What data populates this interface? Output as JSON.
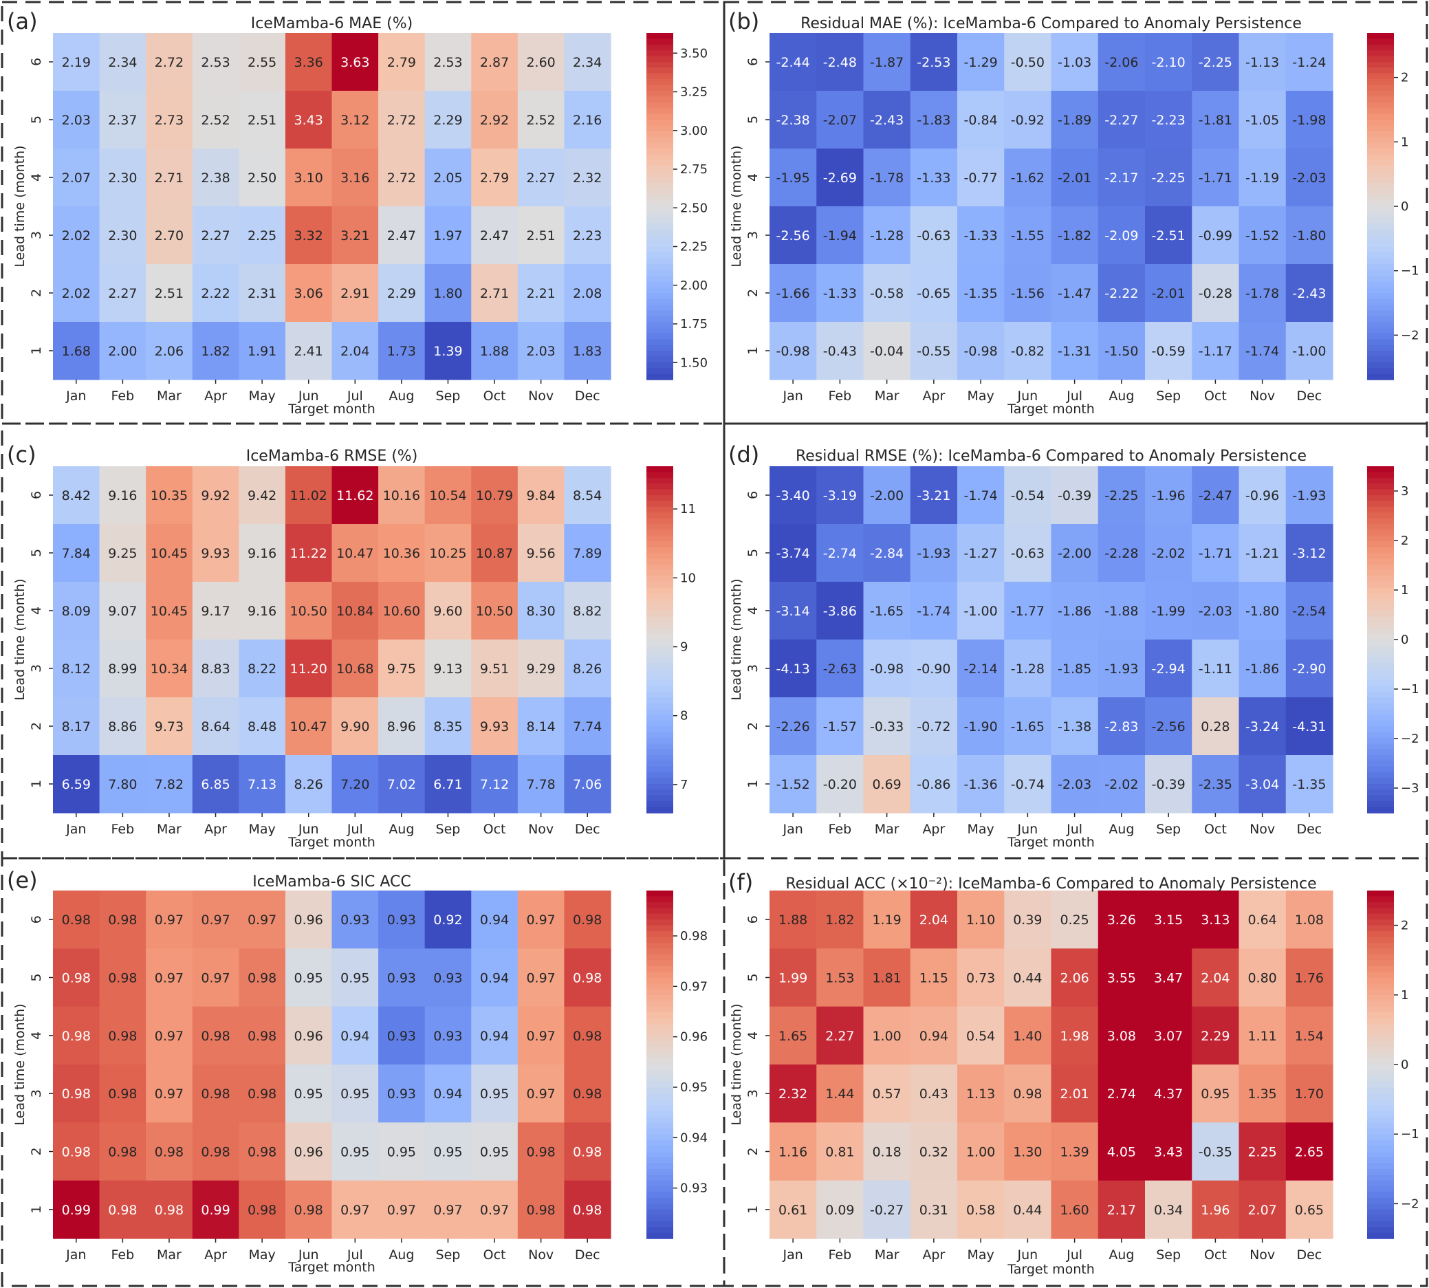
{
  "months": [
    "Jan",
    "Feb",
    "Mar",
    "Apr",
    "May",
    "Jun",
    "Jul",
    "Aug",
    "Sep",
    "Oct",
    "Nov",
    "Dec"
  ],
  "leads": [
    "1",
    "2",
    "3",
    "4",
    "5",
    "6"
  ],
  "xlabel": "Target month",
  "ylabel": "Lead time (month)",
  "chart_data": [
    {
      "type": "heatmap",
      "letter": "(a)",
      "title": "IceMamba-6 MAE (%)",
      "cmap": "coolwarm",
      "vmin": 1.39,
      "vmax": 3.63,
      "colorbar_ticks": [
        "1.50",
        "1.75",
        "2.00",
        "2.25",
        "2.50",
        "2.75",
        "3.00",
        "3.25",
        "3.50"
      ],
      "values": [
        [
          "2.19",
          "2.34",
          "2.72",
          "2.53",
          "2.55",
          "3.36",
          "3.63",
          "2.79",
          "2.53",
          "2.87",
          "2.60",
          "2.34"
        ],
        [
          "2.03",
          "2.37",
          "2.73",
          "2.52",
          "2.51",
          "3.43",
          "3.12",
          "2.72",
          "2.29",
          "2.92",
          "2.52",
          "2.16"
        ],
        [
          "2.07",
          "2.30",
          "2.71",
          "2.38",
          "2.50",
          "3.10",
          "3.16",
          "2.72",
          "2.05",
          "2.79",
          "2.27",
          "2.32"
        ],
        [
          "2.02",
          "2.30",
          "2.70",
          "2.27",
          "2.25",
          "3.32",
          "3.21",
          "2.47",
          "1.97",
          "2.47",
          "2.51",
          "2.23"
        ],
        [
          "2.02",
          "2.27",
          "2.51",
          "2.22",
          "2.31",
          "3.06",
          "2.91",
          "2.29",
          "1.80",
          "2.71",
          "2.21",
          "2.08"
        ],
        [
          "1.68",
          "2.00",
          "2.06",
          "1.82",
          "1.91",
          "2.41",
          "2.04",
          "1.73",
          "1.39",
          "1.88",
          "2.03",
          "1.83"
        ]
      ]
    },
    {
      "type": "heatmap",
      "letter": "(b)",
      "title": "Residual MAE (%): IceMamba-6 Compared to Anomaly Persistence",
      "cmap": "coolwarm",
      "vmin": -2.69,
      "vmax": 2.69,
      "colorbar_ticks": [
        "−2",
        "−1",
        "0",
        "1",
        "2"
      ],
      "values": [
        [
          "-2.44",
          "-2.48",
          "-1.87",
          "-2.53",
          "-1.29",
          "-0.50",
          "-1.03",
          "-2.06",
          "-2.10",
          "-2.25",
          "-1.13",
          "-1.24"
        ],
        [
          "-2.38",
          "-2.07",
          "-2.43",
          "-1.83",
          "-0.84",
          "-0.92",
          "-1.89",
          "-2.27",
          "-2.23",
          "-1.81",
          "-1.05",
          "-1.98"
        ],
        [
          "-1.95",
          "-2.69",
          "-1.78",
          "-1.33",
          "-0.77",
          "-1.62",
          "-2.01",
          "-2.17",
          "-2.25",
          "-1.71",
          "-1.19",
          "-2.03"
        ],
        [
          "-2.56",
          "-1.94",
          "-1.28",
          "-0.63",
          "-1.33",
          "-1.55",
          "-1.82",
          "-2.09",
          "-2.51",
          "-0.99",
          "-1.52",
          "-1.80"
        ],
        [
          "-1.66",
          "-1.33",
          "-0.58",
          "-0.65",
          "-1.35",
          "-1.56",
          "-1.47",
          "-2.22",
          "-2.01",
          "-0.28",
          "-1.78",
          "-2.43"
        ],
        [
          "-0.98",
          "-0.43",
          "-0.04",
          "-0.55",
          "-0.98",
          "-0.82",
          "-1.31",
          "-1.50",
          "-0.59",
          "-1.17",
          "-1.74",
          "-1.00"
        ]
      ]
    },
    {
      "type": "heatmap",
      "letter": "(c)",
      "title": "IceMamba-6 RMSE (%)",
      "cmap": "coolwarm",
      "vmin": 6.59,
      "vmax": 11.62,
      "colorbar_ticks": [
        "7",
        "8",
        "9",
        "10",
        "11"
      ],
      "values": [
        [
          "8.42",
          "9.16",
          "10.35",
          "9.92",
          "9.42",
          "11.02",
          "11.62",
          "10.16",
          "10.54",
          "10.79",
          "9.84",
          "8.54"
        ],
        [
          "7.84",
          "9.25",
          "10.45",
          "9.93",
          "9.16",
          "11.22",
          "10.47",
          "10.36",
          "10.25",
          "10.87",
          "9.56",
          "7.89"
        ],
        [
          "8.09",
          "9.07",
          "10.45",
          "9.17",
          "9.16",
          "10.50",
          "10.84",
          "10.60",
          "9.60",
          "10.50",
          "8.30",
          "8.82"
        ],
        [
          "8.12",
          "8.99",
          "10.34",
          "8.83",
          "8.22",
          "11.20",
          "10.68",
          "9.75",
          "9.13",
          "9.51",
          "9.29",
          "8.26"
        ],
        [
          "8.17",
          "8.86",
          "9.73",
          "8.64",
          "8.48",
          "10.47",
          "9.90",
          "8.96",
          "8.35",
          "9.93",
          "8.14",
          "7.74"
        ],
        [
          "6.59",
          "7.80",
          "7.82",
          "6.85",
          "7.13",
          "8.26",
          "7.20",
          "7.02",
          "6.71",
          "7.12",
          "7.78",
          "7.06"
        ]
      ]
    },
    {
      "type": "heatmap",
      "letter": "(d)",
      "title": "Residual RMSE (%): IceMamba-6 Compared to Anomaly Persistence",
      "cmap": "coolwarm",
      "vmin": -3.5,
      "vmax": 3.5,
      "colorbar_ticks": [
        "−3",
        "−2",
        "−1",
        "0",
        "1",
        "2",
        "3"
      ],
      "values": [
        [
          "-3.40",
          "-3.19",
          "-2.00",
          "-3.21",
          "-1.74",
          "-0.54",
          "-0.39",
          "-2.25",
          "-1.96",
          "-2.47",
          "-0.96",
          "-1.93"
        ],
        [
          "-3.74",
          "-2.74",
          "-2.84",
          "-1.93",
          "-1.27",
          "-0.63",
          "-2.00",
          "-2.28",
          "-2.02",
          "-1.71",
          "-1.21",
          "-3.12"
        ],
        [
          "-3.14",
          "-3.86",
          "-1.65",
          "-1.74",
          "-1.00",
          "-1.77",
          "-1.86",
          "-1.88",
          "-1.99",
          "-2.03",
          "-1.80",
          "-2.54"
        ],
        [
          "-4.13",
          "-2.63",
          "-0.98",
          "-0.90",
          "-2.14",
          "-1.28",
          "-1.85",
          "-1.93",
          "-2.94",
          "-1.11",
          "-1.86",
          "-2.90"
        ],
        [
          "-2.26",
          "-1.57",
          "-0.33",
          "-0.72",
          "-1.90",
          "-1.65",
          "-1.38",
          "-2.83",
          "-2.56",
          "0.28",
          "-3.24",
          "-4.31"
        ],
        [
          "-1.52",
          "-0.20",
          "0.69",
          "-0.86",
          "-1.36",
          "-0.74",
          "-2.03",
          "-2.02",
          "-0.39",
          "-2.35",
          "-3.04",
          "-1.35"
        ]
      ]
    },
    {
      "type": "heatmap",
      "letter": "(e)",
      "title": "IceMamba-6 SIC ACC",
      "cmap": "coolwarm",
      "vmin": 0.92,
      "vmax": 0.989,
      "colorbar_ticks": [
        "0.93",
        "0.94",
        "0.95",
        "0.96",
        "0.97",
        "0.98"
      ],
      "values": [
        [
          "0.98",
          "0.98",
          "0.97",
          "0.97",
          "0.97",
          "0.96",
          "0.93",
          "0.93",
          "0.92",
          "0.94",
          "0.97",
          "0.98"
        ],
        [
          "0.98",
          "0.98",
          "0.97",
          "0.97",
          "0.98",
          "0.95",
          "0.95",
          "0.93",
          "0.93",
          "0.94",
          "0.97",
          "0.98"
        ],
        [
          "0.98",
          "0.98",
          "0.97",
          "0.98",
          "0.98",
          "0.96",
          "0.94",
          "0.93",
          "0.93",
          "0.94",
          "0.97",
          "0.98"
        ],
        [
          "0.98",
          "0.98",
          "0.97",
          "0.98",
          "0.98",
          "0.95",
          "0.95",
          "0.93",
          "0.94",
          "0.95",
          "0.97",
          "0.98"
        ],
        [
          "0.98",
          "0.98",
          "0.98",
          "0.98",
          "0.98",
          "0.96",
          "0.95",
          "0.95",
          "0.95",
          "0.95",
          "0.98",
          "0.98"
        ],
        [
          "0.99",
          "0.98",
          "0.98",
          "0.99",
          "0.98",
          "0.98",
          "0.97",
          "0.97",
          "0.97",
          "0.97",
          "0.98",
          "0.98"
        ]
      ],
      "raw_values": [
        [
          0.98,
          0.979,
          0.973,
          0.974,
          0.974,
          0.958,
          0.933,
          0.929,
          0.92,
          0.937,
          0.972,
          0.98
        ],
        [
          0.982,
          0.979,
          0.972,
          0.973,
          0.976,
          0.953,
          0.95,
          0.931,
          0.931,
          0.938,
          0.97,
          0.983
        ],
        [
          0.981,
          0.979,
          0.972,
          0.977,
          0.977,
          0.958,
          0.945,
          0.928,
          0.932,
          0.941,
          0.971,
          0.98
        ],
        [
          0.982,
          0.98,
          0.972,
          0.978,
          0.978,
          0.953,
          0.951,
          0.934,
          0.939,
          0.95,
          0.97,
          0.98
        ],
        [
          0.981,
          0.979,
          0.976,
          0.978,
          0.977,
          0.959,
          0.953,
          0.954,
          0.953,
          0.954,
          0.978,
          0.982
        ],
        [
          0.989,
          0.982,
          0.982,
          0.988,
          0.98,
          0.975,
          0.966,
          0.966,
          0.966,
          0.966,
          0.978,
          0.985
        ]
      ]
    },
    {
      "type": "heatmap",
      "letter": "(f)",
      "title": "Residual ACC (×10⁻²): IceMamba-6 Compared to Anomaly Persistence",
      "cmap": "coolwarm",
      "vmin": -2.5,
      "vmax": 2.5,
      "colorbar_ticks": [
        "−2",
        "−1",
        "0",
        "1",
        "2"
      ],
      "values": [
        [
          "1.88",
          "1.82",
          "1.19",
          "2.04",
          "1.10",
          "0.39",
          "0.25",
          "3.26",
          "3.15",
          "3.13",
          "0.64",
          "1.08"
        ],
        [
          "1.99",
          "1.53",
          "1.81",
          "1.15",
          "0.73",
          "0.44",
          "2.06",
          "3.55",
          "3.47",
          "2.04",
          "0.80",
          "1.76"
        ],
        [
          "1.65",
          "2.27",
          "1.00",
          "0.94",
          "0.54",
          "1.40",
          "1.98",
          "3.08",
          "3.07",
          "2.29",
          "1.11",
          "1.54"
        ],
        [
          "2.32",
          "1.44",
          "0.57",
          "0.43",
          "1.13",
          "0.98",
          "2.01",
          "2.74",
          "4.37",
          "0.95",
          "1.35",
          "1.70"
        ],
        [
          "1.16",
          "0.81",
          "0.18",
          "0.32",
          "1.00",
          "1.30",
          "1.39",
          "4.05",
          "3.43",
          "-0.35",
          "2.25",
          "2.65"
        ],
        [
          "0.61",
          "0.09",
          "-0.27",
          "0.31",
          "0.58",
          "0.44",
          "1.60",
          "2.17",
          "0.34",
          "1.96",
          "2.07",
          "0.65"
        ]
      ]
    }
  ]
}
